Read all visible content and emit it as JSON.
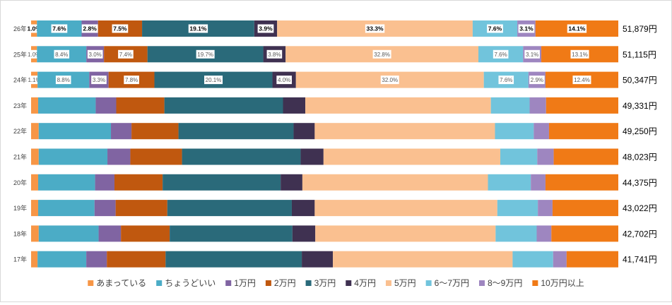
{
  "chart_data": {
    "type": "bar",
    "orientation": "horizontal",
    "stacked": "percent",
    "title": "",
    "xlabel": "",
    "ylabel": "",
    "grid": false,
    "legend_position": "bottom",
    "categories": [
      "26年",
      "25年",
      "24年",
      "23年",
      "22年",
      "21年",
      "20年",
      "19年",
      "18年",
      "17年"
    ],
    "totals": [
      "51,879円",
      "51,115円",
      "50,347円",
      "49,331円",
      "49,250円",
      "48,023円",
      "44,375円",
      "43,022円",
      "42,702円",
      "41,741円"
    ],
    "label_style": [
      "bold",
      "normal",
      "normal",
      "none",
      "none",
      "none",
      "none",
      "none",
      "none",
      "none"
    ],
    "series": [
      {
        "name": "あまっている",
        "color": "#f79646",
        "values": [
          1.0,
          1.0,
          1.1,
          1.2,
          1.3,
          1.3,
          1.2,
          1.2,
          1.3,
          1.1
        ]
      },
      {
        "name": "ちょうどいい",
        "color": "#4bacc6",
        "values": [
          7.6,
          8.4,
          8.8,
          9.8,
          12.3,
          11.7,
          9.7,
          9.6,
          10.2,
          8.3
        ]
      },
      {
        "name": "1万円",
        "color": "#8064a2",
        "values": [
          2.8,
          3.0,
          3.3,
          3.5,
          3.5,
          3.9,
          3.3,
          3.6,
          3.8,
          3.5
        ]
      },
      {
        "name": "2万円",
        "color": "#c0580f",
        "values": [
          7.5,
          7.4,
          7.8,
          8.2,
          8.0,
          8.8,
          8.2,
          8.8,
          8.3,
          10.0
        ]
      },
      {
        "name": "3万円",
        "color": "#2a6a7a",
        "values": [
          19.1,
          19.7,
          20.1,
          20.2,
          19.6,
          20.2,
          20.1,
          21.2,
          20.9,
          23.2
        ]
      },
      {
        "name": "4万円",
        "color": "#3f3151",
        "values": [
          3.9,
          3.8,
          4.0,
          3.8,
          3.6,
          3.9,
          3.7,
          3.9,
          3.9,
          5.3
        ]
      },
      {
        "name": "5万円",
        "color": "#fac090",
        "values": [
          33.3,
          32.8,
          32.0,
          31.6,
          30.7,
          30.1,
          31.6,
          31.1,
          30.7,
          30.6
        ]
      },
      {
        "name": "6～7万円",
        "color": "#71c4dc",
        "values": [
          7.6,
          7.6,
          7.6,
          6.6,
          6.6,
          6.3,
          7.3,
          6.9,
          7.0,
          6.9
        ]
      },
      {
        "name": "8～9万円",
        "color": "#9e86c0",
        "values": [
          3.1,
          3.1,
          2.9,
          2.8,
          2.6,
          2.8,
          2.5,
          2.5,
          2.5,
          2.3
        ]
      },
      {
        "name": "10万円以上",
        "color": "#f07a16",
        "values": [
          14.1,
          13.1,
          12.4,
          12.3,
          11.8,
          11.0,
          12.4,
          11.2,
          11.4,
          8.8
        ]
      }
    ]
  }
}
